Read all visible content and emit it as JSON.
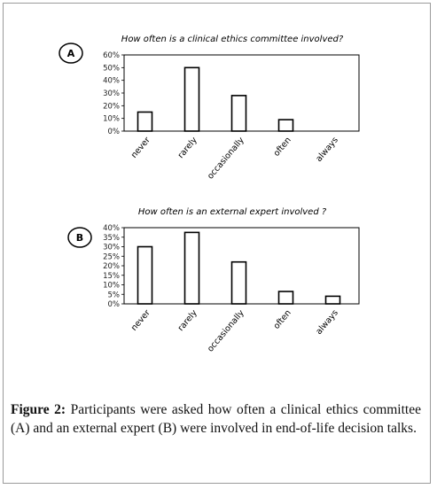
{
  "panels": [
    {
      "letter": "A"
    },
    {
      "letter": "B"
    }
  ],
  "chart_data": [
    {
      "type": "bar",
      "title": "How often is a clinical ethics committee involved?",
      "categories": [
        "never",
        "rarely",
        "occasionally",
        "often",
        "always"
      ],
      "values": [
        0.15,
        0.5,
        0.28,
        0.09,
        0.0
      ],
      "ylim": [
        0,
        0.6
      ],
      "yticks": [
        "0%",
        "10%",
        "20%",
        "30%",
        "40%",
        "50%",
        "60%"
      ],
      "xlabel": "",
      "ylabel": "",
      "grid": false
    },
    {
      "type": "bar",
      "title": "How often is an external expert involved ?",
      "categories": [
        "never",
        "rarely",
        "occasionally",
        "often",
        "always"
      ],
      "values": [
        0.3,
        0.375,
        0.22,
        0.065,
        0.04
      ],
      "ylim": [
        0,
        0.4
      ],
      "yticks": [
        "0%",
        "5%",
        "10%",
        "15%",
        "20%",
        "25%",
        "30%",
        "35%",
        "40%"
      ],
      "xlabel": "",
      "ylabel": "",
      "grid": false
    }
  ],
  "caption": {
    "label": "Figure 2:",
    "text": "Participants were asked how often a clinical ethics committee (A) and an external expert (B) were involved in end-of-life decision talks."
  }
}
